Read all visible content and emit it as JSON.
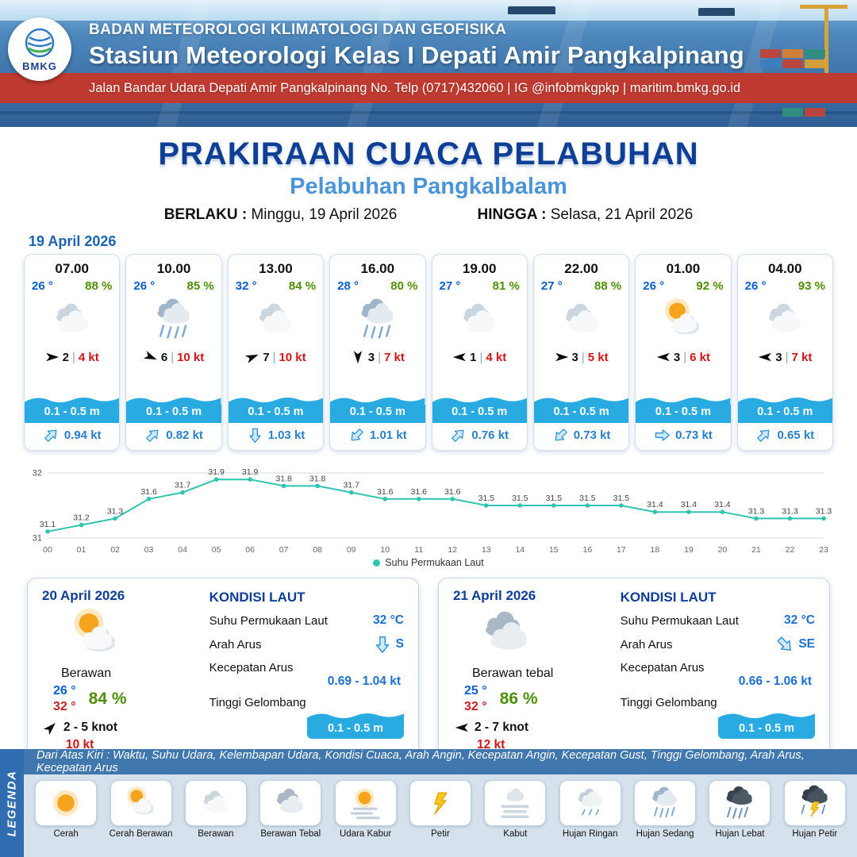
{
  "colors": {
    "header_blue": "#3a6fa6",
    "band_red": "#bf3a30",
    "title_blue": "#0f3e96",
    "subtitle_blue": "#4b94d8",
    "wave_blue": "#29abe2",
    "temp_blue": "#0a5fd0",
    "humidity_green": "#4f8f06",
    "gust_red": "#d01414",
    "chart_teal": "#2fc5b1",
    "legend_bar_blue": "#2f6cb0"
  },
  "ui": {
    "sep": "|"
  },
  "header": {
    "logo": "BMKG",
    "agency": "BADAN METEOROLOGI KLIMATOLOGI DAN GEOFISIKA",
    "station": "Stasiun Meteorologi Kelas I Depati Amir Pangkalpinang",
    "address": "Jalan Bandar Udara Depati Amir Pangkalpinang No. Telp (0717)432060 | IG @infobmkgpkp | maritim.bmkg.go.id"
  },
  "title": {
    "main": "PRAKIRAAN CUACA PELABUHAN",
    "subtitle": "Pelabuhan Pangkalbalam",
    "berlaku_label": "BERLAKU :",
    "berlaku_value": "Minggu, 19 April 2026",
    "hingga_label": "HINGGA :",
    "hingga_value": "Selasa, 21 April 2026"
  },
  "forecast": {
    "date": "19 April 2026",
    "cards": [
      {
        "time": "07.00",
        "temp": "26 °",
        "humidity": "88 %",
        "icon": "berawan",
        "wind_dir": "E",
        "wind_speed": "2",
        "gust": "4 kt",
        "wave": "0.1 - 0.5 m",
        "current_dir": "NE",
        "current_speed": "0.94 kt"
      },
      {
        "time": "10.00",
        "temp": "26 °",
        "humidity": "85 %",
        "icon": "hujan-sedang",
        "wind_dir": "ESE",
        "wind_speed": "6",
        "gust": "10 kt",
        "wave": "0.1 - 0.5 m",
        "current_dir": "NE",
        "current_speed": "0.82 kt"
      },
      {
        "time": "13.00",
        "temp": "32 °",
        "humidity": "84 %",
        "icon": "berawan",
        "wind_dir": "ENE",
        "wind_speed": "7",
        "gust": "10 kt",
        "wave": "0.1 - 0.5 m",
        "current_dir": "S",
        "current_speed": "1.03 kt"
      },
      {
        "time": "16.00",
        "temp": "28 °",
        "humidity": "80 %",
        "icon": "hujan-sedang",
        "wind_dir": "S",
        "wind_speed": "3",
        "gust": "7 kt",
        "wave": "0.1 - 0.5 m",
        "current_dir": "SW",
        "current_speed": "1.01 kt"
      },
      {
        "time": "19.00",
        "temp": "27 °",
        "humidity": "81 %",
        "icon": "berawan",
        "wind_dir": "W",
        "wind_speed": "1",
        "gust": "4 kt",
        "wave": "0.1 - 0.5 m",
        "current_dir": "NE",
        "current_speed": "0.76 kt"
      },
      {
        "time": "22.00",
        "temp": "27 °",
        "humidity": "88 %",
        "icon": "berawan",
        "wind_dir": "E",
        "wind_speed": "3",
        "gust": "5 kt",
        "wave": "0.1 - 0.5 m",
        "current_dir": "SW",
        "current_speed": "0.73 kt"
      },
      {
        "time": "01.00",
        "temp": "26 °",
        "humidity": "92 %",
        "icon": "cerah-berawan",
        "wind_dir": "W",
        "wind_speed": "3",
        "gust": "6 kt",
        "wave": "0.1 - 0.5 m",
        "current_dir": "E",
        "current_speed": "0.73 kt"
      },
      {
        "time": "04.00",
        "temp": "26 °",
        "humidity": "93 %",
        "icon": "berawan",
        "wind_dir": "W",
        "wind_speed": "3",
        "gust": "7 kt",
        "wave": "0.1 - 0.5 m",
        "current_dir": "NE",
        "current_speed": "0.65 kt"
      }
    ]
  },
  "chart_data": {
    "type": "line",
    "legend": "Suhu Permukaan Laut",
    "color": "#2fc5b1",
    "ylim": [
      31,
      32
    ],
    "grid": true,
    "legend_position": "bottom",
    "x": [
      "00",
      "01",
      "02",
      "03",
      "04",
      "05",
      "06",
      "07",
      "08",
      "09",
      "10",
      "11",
      "12",
      "13",
      "14",
      "15",
      "16",
      "17",
      "18",
      "19",
      "20",
      "21",
      "22",
      "23"
    ],
    "series": [
      {
        "name": "Suhu Permukaan Laut",
        "values": [
          31.1,
          31.2,
          31.3,
          31.6,
          31.7,
          31.9,
          31.9,
          31.8,
          31.8,
          31.7,
          31.6,
          31.6,
          31.6,
          31.5,
          31.5,
          31.5,
          31.5,
          31.5,
          31.4,
          31.4,
          31.4,
          31.3,
          31.3,
          31.3
        ]
      }
    ]
  },
  "summary": [
    {
      "date": "20 April 2026",
      "icon": "cerah-berawan",
      "condition": "Berawan",
      "temp_min": "26 °",
      "temp_max": "32 °",
      "humidity": "84 %",
      "wind_dir": "NE",
      "wind": "2 - 5 knot",
      "gust": "10 kt",
      "sea": {
        "title": "KONDISI LAUT",
        "sst_label": "Suhu Permukaan Laut",
        "sst": "32 °C",
        "arus_label": "Arah Arus",
        "arus_dir": "S",
        "kec_label": "Kecepatan Arus",
        "kec": "0.69 - 1.04 kt",
        "gel_label": "Tinggi Gelombang",
        "gel": "0.1 - 0.5 m"
      }
    },
    {
      "date": "21 April 2026",
      "icon": "berawan-tebal",
      "condition": "Berawan tebal",
      "temp_min": "25 °",
      "temp_max": "32 °",
      "humidity": "86 %",
      "wind_dir": "W",
      "wind": "2 - 7 knot",
      "gust": "12 kt",
      "sea": {
        "title": "KONDISI LAUT",
        "sst_label": "Suhu Permukaan Laut",
        "sst": "32 °C",
        "arus_label": "Arah Arus",
        "arus_dir": "SE",
        "kec_label": "Kecepatan Arus",
        "kec": "0.66 - 1.06 kt",
        "gel_label": "Tinggi Gelombang",
        "gel": "0.1 - 0.5 m"
      }
    }
  ],
  "legend": {
    "note": "Dari Atas Kiri : Waktu, Suhu Udara, Kelembapan Udara, Kondisi Cuaca, Arah Angin, Kecepatan Angin, Kecepatan Gust, Tinggi Gelombang, Arah Arus, Kecepatan Arus",
    "side_label": "LEGENDA",
    "items": [
      {
        "label": "Cerah",
        "icon": "cerah"
      },
      {
        "label": "Cerah Berawan",
        "icon": "cerah-berawan"
      },
      {
        "label": "Berawan",
        "icon": "berawan"
      },
      {
        "label": "Berawan Tebal",
        "icon": "berawan-tebal"
      },
      {
        "label": "Udara Kabur",
        "icon": "udara-kabur"
      },
      {
        "label": "Petir",
        "icon": "petir"
      },
      {
        "label": "Kabut",
        "icon": "kabut"
      },
      {
        "label": "Hujan Ringan",
        "icon": "hujan-ringan"
      },
      {
        "label": "Hujan Sedang",
        "icon": "hujan-sedang"
      },
      {
        "label": "Hujan Lebat",
        "icon": "hujan-lebat"
      },
      {
        "label": "Hujan Petir",
        "icon": "hujan-petir"
      }
    ]
  }
}
